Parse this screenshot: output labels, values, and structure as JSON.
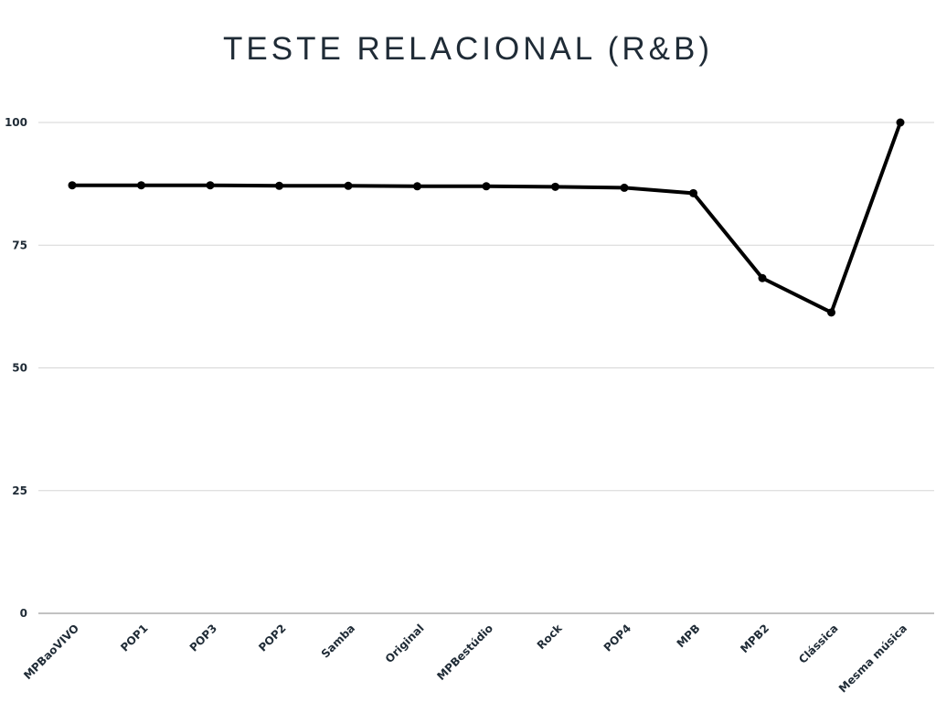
{
  "chart_data": {
    "type": "line",
    "title": "TESTE RELACIONAL (R&B)",
    "xlabel": "",
    "ylabel": "",
    "ylim": [
      0,
      100
    ],
    "yticks": [
      "0",
      "25",
      "50",
      "75",
      "100"
    ],
    "grid": true,
    "legend": "none",
    "line_color": "#000000",
    "categories": [
      "MPBaoVIVO",
      "POP1",
      "POP3",
      "POP2",
      "Samba",
      "Original",
      "MPBestúdio",
      "Rock",
      "POP4",
      "MPB",
      "MPB2",
      "Clássica",
      "Mesma música"
    ],
    "series": [
      {
        "values": [
          87.2,
          87.2,
          87.2,
          87.1,
          87.1,
          87.0,
          87.0,
          86.9,
          86.7,
          85.6,
          68.3,
          61.3,
          100
        ]
      }
    ]
  }
}
